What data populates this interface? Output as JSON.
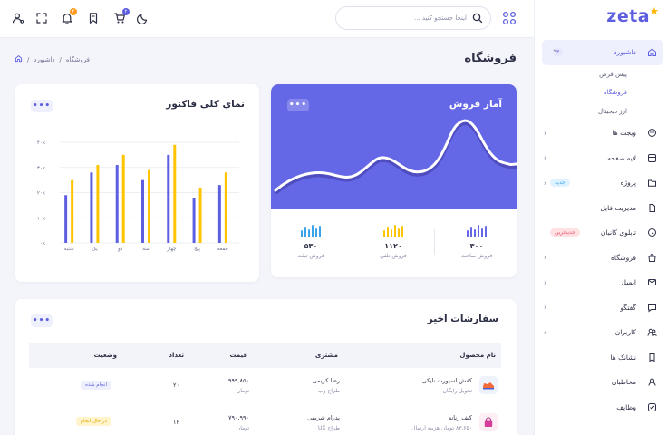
{
  "brand": {
    "name": "zeta",
    "accent": "#5d5fe0",
    "star_color": "#ffb400"
  },
  "sidebar": {
    "items": [
      {
        "id": "dashboard",
        "label": "داشبورد",
        "icon": "home-icon",
        "badge": "۳",
        "badge_type": "count",
        "active": true,
        "chevron": "down"
      },
      {
        "id": "widgets",
        "label": "ویجت ها",
        "icon": "widget-icon",
        "chevron": "left"
      },
      {
        "id": "page-layers",
        "label": "لایه صفحه",
        "icon": "layers-icon",
        "chevron": "left"
      },
      {
        "id": "project",
        "label": "پروژه",
        "icon": "folder-icon",
        "badge": "جدید",
        "badge_type": "new",
        "chevron": "left"
      },
      {
        "id": "file-manager",
        "label": "مدیریت فایل",
        "icon": "file-icon"
      },
      {
        "id": "kanban",
        "label": "تابلوی کانبان",
        "icon": "clock-icon",
        "badge": "جدیدترین",
        "badge_type": "newest"
      },
      {
        "id": "shop",
        "label": "فروشگاه",
        "icon": "bag-icon",
        "chevron": "left"
      },
      {
        "id": "email",
        "label": "ایمیل",
        "icon": "mail-icon",
        "chevron": "left"
      },
      {
        "id": "chat",
        "label": "گفتگو",
        "icon": "chat-icon",
        "chevron": "left"
      },
      {
        "id": "users",
        "label": "کاربران",
        "icon": "users-icon",
        "chevron": "left"
      },
      {
        "id": "bookmarks",
        "label": "نشانک ها",
        "icon": "bookmark-icon"
      },
      {
        "id": "contacts",
        "label": "مخاطبان",
        "icon": "contact-icon"
      },
      {
        "id": "tasks",
        "label": "وظایف",
        "icon": "check-icon"
      }
    ],
    "dashboard_sub": [
      {
        "label": "پیش فرض",
        "active": false
      },
      {
        "label": "فروشگاه",
        "active": true
      },
      {
        "label": "ارز دیجیتال",
        "active": false
      }
    ]
  },
  "topbar": {
    "search_placeholder": "اینجا جستجو کنید ...",
    "notification_count": "۴",
    "cart_count": "۲"
  },
  "page": {
    "title": "فروشگاه",
    "breadcrumb": [
      "داشبورد",
      "فروشگاه"
    ]
  },
  "sales_card": {
    "title": "آمار فروش",
    "color": "#6467e6",
    "stats": [
      {
        "value": "۳۰۰",
        "label": "فروش ساعت",
        "bar_color": "#6467e6"
      },
      {
        "value": "۱۱۲۰",
        "label": "فروش تلفن",
        "bar_color": "#ffc400"
      },
      {
        "value": "۵۳۰",
        "label": "فروش تبلت",
        "bar_color": "#39a4ea"
      }
    ]
  },
  "chart_data": {
    "type": "bar",
    "title": "نمای کلی فاکتور",
    "categories": [
      "شنبه",
      "یک",
      "دو",
      "سه",
      "چهار",
      "پنج",
      "جمعه"
    ],
    "series": [
      {
        "color": "#5d5fe0",
        "values": [
          19000,
          28000,
          31000,
          25000,
          35000,
          18000,
          23000
        ]
      },
      {
        "color": "#ffc400",
        "values": [
          25000,
          31000,
          35000,
          29000,
          39000,
          22000,
          28000
        ]
      }
    ],
    "y_ticks": [
      "۴۰k",
      "۳۰k",
      "۲۰k",
      "۱۰k",
      "۰k"
    ],
    "ylim": [
      0,
      40000
    ],
    "grid": true
  },
  "orders": {
    "title": "سفارشات اخیر",
    "columns": [
      "نام محصول",
      "مشتری",
      "قیمت",
      "تعداد",
      "وضعیت"
    ],
    "rows": [
      {
        "product": "کفش اسپورت نایکی",
        "product_sub": "تحویل رایگان",
        "customer": "رضا کریمی",
        "customer_sub": "طراح وب",
        "price": "۹۹۹,۸۵۰",
        "price_sub": "تومان",
        "qty": "۲۰",
        "status": "انجام شده",
        "status_type": "done",
        "icon": "shoe-icon"
      },
      {
        "product": "کیف زنانه",
        "product_sub": "۸۳,۶۵۰ تومان هزینه ارسال",
        "customer": "پدرام شریفی",
        "customer_sub": "طراح UX",
        "price": "۷۹۰,۹۹۰",
        "price_sub": "تومان",
        "qty": "۱۲",
        "status": "در حال انجام",
        "status_type": "pending",
        "icon": "handbag-icon"
      }
    ]
  }
}
